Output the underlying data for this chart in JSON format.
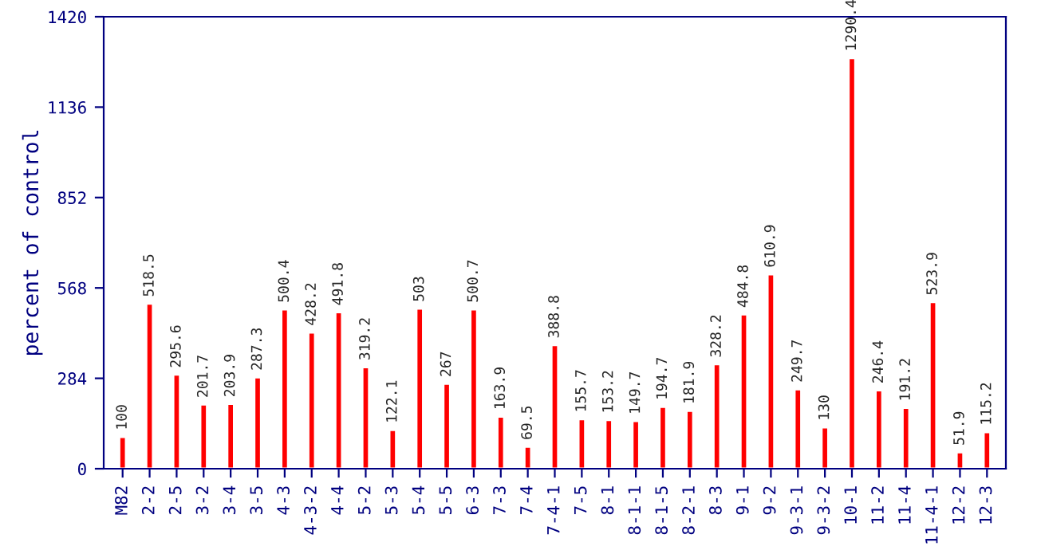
{
  "chart_data": {
    "type": "bar",
    "ylabel": "percent of control",
    "categories": [
      "M82",
      "2-2",
      "2-5",
      "3-2",
      "3-4",
      "3-5",
      "4-3",
      "4-3-2",
      "4-4",
      "5-2",
      "5-3",
      "5-4",
      "5-5",
      "6-3",
      "7-3",
      "7-4",
      "7-4-1",
      "7-5",
      "8-1",
      "8-1-1",
      "8-1-5",
      "8-2-1",
      "8-3",
      "9-1",
      "9-2",
      "9-3-1",
      "9-3-2",
      "10-1",
      "11-2",
      "11-4",
      "11-4-1",
      "12-2",
      "12-3"
    ],
    "values": [
      100,
      518.5,
      295.6,
      201.7,
      203.9,
      287.3,
      500.4,
      428.2,
      491.8,
      319.2,
      122.1,
      503,
      267,
      500.7,
      163.9,
      69.5,
      388.8,
      155.7,
      153.2,
      149.7,
      194.7,
      181.9,
      328.2,
      484.8,
      610.9,
      249.7,
      130,
      1290.4,
      246.4,
      191.2,
      523.9,
      51.9,
      115.2
    ],
    "color": "#ff0000",
    "ylim": [
      0,
      1420
    ],
    "yticks": [
      0,
      284,
      568,
      852,
      1136,
      1420
    ],
    "grid": false,
    "data_labels": true
  }
}
